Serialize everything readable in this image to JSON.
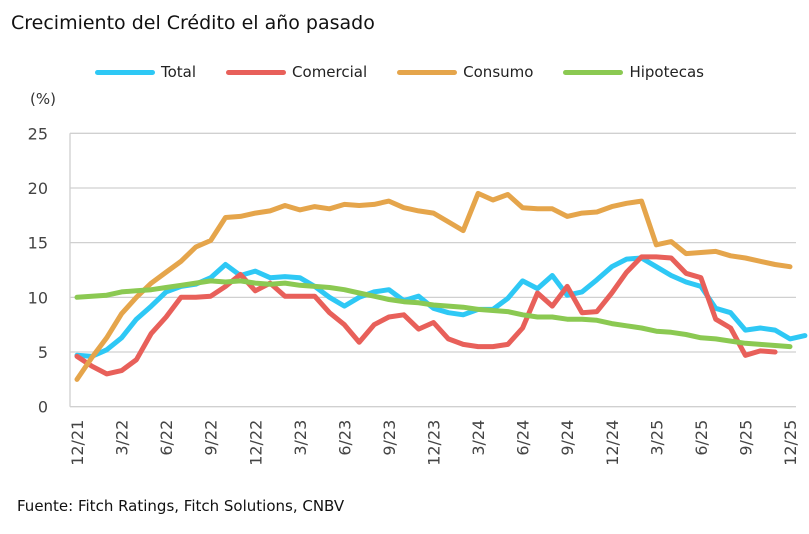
{
  "chart_data": {
    "type": "line",
    "title": "Crecimiento del Crédito el año pasado",
    "ylabel": "(%)",
    "source": "Fuente: Fitch Ratings, Fitch Solutions, CNBV",
    "ylim": [
      0,
      25
    ],
    "yticks": [
      0,
      5,
      10,
      15,
      20,
      25
    ],
    "grid": true,
    "legend": "top",
    "x_start": "12/21",
    "x_end": "12/25",
    "xticks": [
      "12/21",
      "3/22",
      "6/22",
      "9/22",
      "12/22",
      "3/23",
      "6/23",
      "9/23",
      "12/23",
      "3/24",
      "6/24",
      "9/24",
      "12/24",
      "3/25",
      "6/25",
      "9/25",
      "12/25"
    ],
    "series": [
      {
        "name": "Total",
        "color": "#2ec8f5",
        "values": [
          4.7,
          4.6,
          5.2,
          6.3,
          8.0,
          9.2,
          10.5,
          11.0,
          11.2,
          11.8,
          13.0,
          12.0,
          12.4,
          11.8,
          11.9,
          11.8,
          11.0,
          10.0,
          9.2,
          10.0,
          10.5,
          10.7,
          9.7,
          10.1,
          9.0,
          8.6,
          8.4,
          8.9,
          8.9,
          9.9,
          11.5,
          10.8,
          12.0,
          10.2,
          10.5,
          11.6,
          12.8,
          13.5,
          13.6,
          12.8,
          12.0,
          11.4,
          11.0,
          9.0,
          8.6,
          7.0,
          7.2,
          7.0,
          6.2,
          6.5
        ]
      },
      {
        "name": "Comercial",
        "color": "#e8605a",
        "values": [
          4.6,
          3.7,
          3.0,
          3.3,
          4.3,
          6.7,
          8.2,
          10.0,
          10.0,
          10.1,
          11.0,
          12.1,
          10.6,
          11.3,
          10.1,
          10.1,
          10.1,
          8.6,
          7.5,
          5.9,
          7.5,
          8.2,
          8.4,
          7.1,
          7.7,
          6.2,
          5.7,
          5.5,
          5.5,
          5.7,
          7.2,
          10.4,
          9.2,
          11.0,
          8.6,
          8.7,
          10.4,
          12.3,
          13.7,
          13.7,
          13.6,
          12.2,
          11.8,
          8.0,
          7.2,
          4.7,
          5.1,
          5.0
        ]
      },
      {
        "name": "Consumo",
        "color": "#e5a54b",
        "values": [
          2.5,
          4.5,
          6.3,
          8.5,
          10.0,
          11.3,
          12.3,
          13.3,
          14.6,
          15.2,
          17.3,
          17.4,
          17.7,
          17.9,
          18.4,
          18.0,
          18.3,
          18.1,
          18.5,
          18.4,
          18.5,
          18.8,
          18.2,
          17.9,
          17.7,
          16.9,
          16.1,
          19.5,
          18.9,
          19.4,
          18.2,
          18.1,
          18.1,
          17.4,
          17.7,
          17.8,
          18.3,
          18.6,
          18.8,
          14.8,
          15.1,
          14.0,
          14.1,
          14.2,
          13.8,
          13.6,
          13.3,
          13.0,
          12.8
        ]
      },
      {
        "name": "Hipotecas",
        "color": "#8bc952",
        "values": [
          10.0,
          10.1,
          10.2,
          10.5,
          10.6,
          10.7,
          10.9,
          11.1,
          11.3,
          11.5,
          11.4,
          11.5,
          11.3,
          11.2,
          11.3,
          11.1,
          11.0,
          10.9,
          10.7,
          10.4,
          10.1,
          9.8,
          9.6,
          9.5,
          9.3,
          9.2,
          9.1,
          8.9,
          8.8,
          8.7,
          8.4,
          8.2,
          8.2,
          8.0,
          8.0,
          7.9,
          7.6,
          7.4,
          7.2,
          6.9,
          6.8,
          6.6,
          6.3,
          6.2,
          6.0,
          5.8,
          5.7,
          5.6,
          5.5
        ]
      }
    ]
  }
}
